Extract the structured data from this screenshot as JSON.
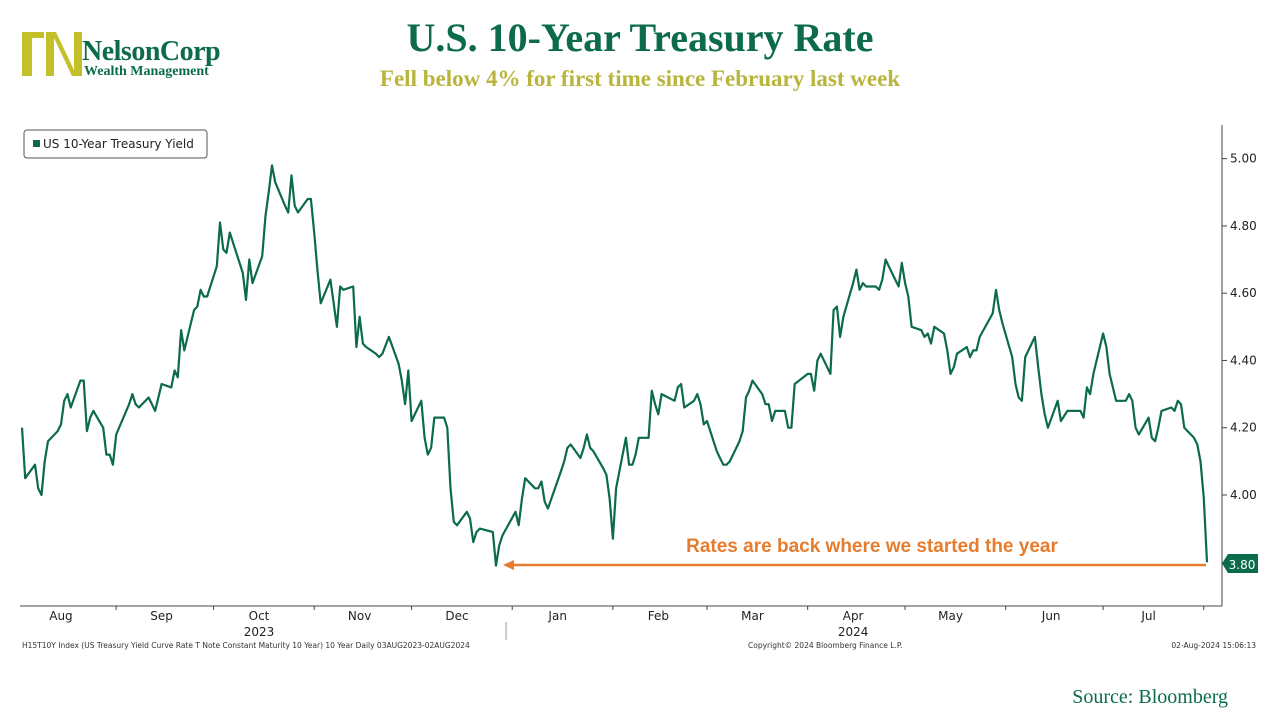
{
  "logo": {
    "name": "NelsonCorp",
    "sub": "Wealth Management",
    "colors": {
      "green": "#0b6b4a",
      "gold": "#c4c02a"
    }
  },
  "header": {
    "title": "U.S. 10-Year Treasury Rate",
    "subtitle": "Fell below 4% for first time since February last week"
  },
  "source": "Source:  Bloomberg",
  "footer": {
    "left": "H15T10Y Index (US Treasury Yield Curve Rate T Note Constant Maturity 10 Year) 10 Year  Daily 03AUG2023-02AUG2024",
    "center": "Copyright© 2024 Bloomberg Finance L.P.",
    "right": "02-Aug-2024 15:06:13"
  },
  "annotation": {
    "text": "Rates are back where we started the year",
    "color": "#e87c2e"
  },
  "last_value_label": "3.80",
  "chart_data": {
    "type": "line",
    "title": "U.S. 10-Year Treasury Rate",
    "ylim": [
      3.67,
      5.1
    ],
    "y_ticks": [
      "5.00",
      "4.80",
      "4.60",
      "4.40",
      "4.20",
      "4.00"
    ],
    "x_month_labels": [
      "Aug",
      "Sep",
      "Oct",
      "Nov",
      "Dec",
      "Jan",
      "Feb",
      "Mar",
      "Apr",
      "May",
      "Jun",
      "Jul"
    ],
    "x_year_labels": [
      "2023",
      "2024"
    ],
    "grid": false,
    "legend_position": "top-left",
    "series": [
      {
        "name": "US 10-Year Treasury Yield",
        "color": "#0b6b4a",
        "x": [
          "2023-08-03",
          "2023-08-04",
          "2023-08-07",
          "2023-08-08",
          "2023-08-09",
          "2023-08-10",
          "2023-08-11",
          "2023-08-14",
          "2023-08-15",
          "2023-08-16",
          "2023-08-17",
          "2023-08-18",
          "2023-08-21",
          "2023-08-22",
          "2023-08-23",
          "2023-08-24",
          "2023-08-25",
          "2023-08-28",
          "2023-08-29",
          "2023-08-30",
          "2023-08-31",
          "2023-09-01",
          "2023-09-05",
          "2023-09-06",
          "2023-09-07",
          "2023-09-08",
          "2023-09-11",
          "2023-09-12",
          "2023-09-13",
          "2023-09-14",
          "2023-09-15",
          "2023-09-18",
          "2023-09-19",
          "2023-09-20",
          "2023-09-21",
          "2023-09-22",
          "2023-09-25",
          "2023-09-26",
          "2023-09-27",
          "2023-09-28",
          "2023-09-29",
          "2023-10-02",
          "2023-10-03",
          "2023-10-04",
          "2023-10-05",
          "2023-10-06",
          "2023-10-10",
          "2023-10-11",
          "2023-10-12",
          "2023-10-13",
          "2023-10-16",
          "2023-10-17",
          "2023-10-18",
          "2023-10-19",
          "2023-10-20",
          "2023-10-23",
          "2023-10-24",
          "2023-10-25",
          "2023-10-26",
          "2023-10-27",
          "2023-10-30",
          "2023-10-31",
          "2023-11-01",
          "2023-11-02",
          "2023-11-03",
          "2023-11-06",
          "2023-11-07",
          "2023-11-08",
          "2023-11-09",
          "2023-11-10",
          "2023-11-13",
          "2023-11-14",
          "2023-11-15",
          "2023-11-16",
          "2023-11-17",
          "2023-11-20",
          "2023-11-21",
          "2023-11-22",
          "2023-11-24",
          "2023-11-27",
          "2023-11-28",
          "2023-11-29",
          "2023-11-30",
          "2023-12-01",
          "2023-12-04",
          "2023-12-05",
          "2023-12-06",
          "2023-12-07",
          "2023-12-08",
          "2023-12-11",
          "2023-12-12",
          "2023-12-13",
          "2023-12-14",
          "2023-12-15",
          "2023-12-18",
          "2023-12-19",
          "2023-12-20",
          "2023-12-21",
          "2023-12-22",
          "2023-12-26",
          "2023-12-27",
          "2023-12-28",
          "2023-12-29",
          "2024-01-02",
          "2024-01-03",
          "2024-01-04",
          "2024-01-05",
          "2024-01-08",
          "2024-01-09",
          "2024-01-10",
          "2024-01-11",
          "2024-01-12",
          "2024-01-16",
          "2024-01-17",
          "2024-01-18",
          "2024-01-19",
          "2024-01-22",
          "2024-01-23",
          "2024-01-24",
          "2024-01-25",
          "2024-01-26",
          "2024-01-29",
          "2024-01-30",
          "2024-01-31",
          "2024-02-01",
          "2024-02-02",
          "2024-02-05",
          "2024-02-06",
          "2024-02-07",
          "2024-02-08",
          "2024-02-09",
          "2024-02-12",
          "2024-02-13",
          "2024-02-14",
          "2024-02-15",
          "2024-02-16",
          "2024-02-20",
          "2024-02-21",
          "2024-02-22",
          "2024-02-23",
          "2024-02-26",
          "2024-02-27",
          "2024-02-28",
          "2024-02-29",
          "2024-03-01",
          "2024-03-04",
          "2024-03-05",
          "2024-03-06",
          "2024-03-07",
          "2024-03-08",
          "2024-03-11",
          "2024-03-12",
          "2024-03-13",
          "2024-03-14",
          "2024-03-15",
          "2024-03-18",
          "2024-03-19",
          "2024-03-20",
          "2024-03-21",
          "2024-03-22",
          "2024-03-25",
          "2024-03-26",
          "2024-03-27",
          "2024-03-28",
          "2024-04-01",
          "2024-04-02",
          "2024-04-03",
          "2024-04-04",
          "2024-04-05",
          "2024-04-08",
          "2024-04-09",
          "2024-04-10",
          "2024-04-11",
          "2024-04-12",
          "2024-04-15",
          "2024-04-16",
          "2024-04-17",
          "2024-04-18",
          "2024-04-19",
          "2024-04-22",
          "2024-04-23",
          "2024-04-24",
          "2024-04-25",
          "2024-04-26",
          "2024-04-29",
          "2024-04-30",
          "2024-05-01",
          "2024-05-02",
          "2024-05-03",
          "2024-05-06",
          "2024-05-07",
          "2024-05-08",
          "2024-05-09",
          "2024-05-10",
          "2024-05-13",
          "2024-05-14",
          "2024-05-15",
          "2024-05-16",
          "2024-05-17",
          "2024-05-20",
          "2024-05-21",
          "2024-05-22",
          "2024-05-23",
          "2024-05-24",
          "2024-05-28",
          "2024-05-29",
          "2024-05-30",
          "2024-05-31",
          "2024-06-03",
          "2024-06-04",
          "2024-06-05",
          "2024-06-06",
          "2024-06-07",
          "2024-06-10",
          "2024-06-11",
          "2024-06-12",
          "2024-06-13",
          "2024-06-14",
          "2024-06-17",
          "2024-06-18",
          "2024-06-20",
          "2024-06-21",
          "2024-06-24",
          "2024-06-25",
          "2024-06-26",
          "2024-06-27",
          "2024-06-28",
          "2024-07-01",
          "2024-07-02",
          "2024-07-03",
          "2024-07-05",
          "2024-07-08",
          "2024-07-09",
          "2024-07-10",
          "2024-07-11",
          "2024-07-12",
          "2024-07-15",
          "2024-07-16",
          "2024-07-17",
          "2024-07-18",
          "2024-07-19",
          "2024-07-22",
          "2024-07-23",
          "2024-07-24",
          "2024-07-25",
          "2024-07-26",
          "2024-07-29",
          "2024-07-30",
          "2024-07-31",
          "2024-08-01",
          "2024-08-02"
        ],
        "values": [
          4.2,
          4.05,
          4.09,
          4.02,
          4.0,
          4.1,
          4.16,
          4.19,
          4.21,
          4.28,
          4.3,
          4.26,
          4.34,
          4.34,
          4.19,
          4.23,
          4.25,
          4.2,
          4.12,
          4.12,
          4.09,
          4.18,
          4.27,
          4.3,
          4.27,
          4.26,
          4.29,
          4.27,
          4.25,
          4.29,
          4.33,
          4.32,
          4.37,
          4.35,
          4.49,
          4.43,
          4.55,
          4.56,
          4.61,
          4.59,
          4.59,
          4.68,
          4.81,
          4.73,
          4.72,
          4.78,
          4.66,
          4.58,
          4.7,
          4.63,
          4.71,
          4.83,
          4.9,
          4.98,
          4.93,
          4.86,
          4.84,
          4.95,
          4.86,
          4.84,
          4.88,
          4.88,
          4.78,
          4.67,
          4.57,
          4.64,
          4.57,
          4.5,
          4.62,
          4.61,
          4.62,
          4.44,
          4.53,
          4.45,
          4.44,
          4.42,
          4.41,
          4.42,
          4.47,
          4.39,
          4.34,
          4.27,
          4.37,
          4.22,
          4.28,
          4.17,
          4.12,
          4.14,
          4.23,
          4.23,
          4.2,
          4.02,
          3.92,
          3.91,
          3.95,
          3.93,
          3.86,
          3.89,
          3.9,
          3.89,
          3.79,
          3.85,
          3.88,
          3.95,
          3.91,
          3.99,
          4.05,
          4.02,
          4.02,
          4.04,
          3.98,
          3.96,
          4.07,
          4.1,
          4.14,
          4.15,
          4.11,
          4.14,
          4.18,
          4.14,
          4.13,
          4.08,
          4.06,
          3.99,
          3.87,
          4.02,
          4.17,
          4.09,
          4.09,
          4.12,
          4.17,
          4.17,
          4.31,
          4.27,
          4.24,
          4.3,
          4.28,
          4.32,
          4.33,
          4.26,
          4.28,
          4.3,
          4.27,
          4.21,
          4.22,
          4.13,
          4.11,
          4.09,
          4.09,
          4.1,
          4.16,
          4.19,
          4.29,
          4.31,
          4.34,
          4.3,
          4.27,
          4.27,
          4.22,
          4.25,
          4.25,
          4.2,
          4.2,
          4.33,
          4.36,
          4.36,
          4.31,
          4.4,
          4.42,
          4.36,
          4.55,
          4.56,
          4.47,
          4.53,
          4.63,
          4.67,
          4.61,
          4.63,
          4.62,
          4.62,
          4.61,
          4.64,
          4.7,
          4.68,
          4.62,
          4.69,
          4.63,
          4.59,
          4.5,
          4.49,
          4.47,
          4.48,
          4.45,
          4.5,
          4.48,
          4.43,
          4.36,
          4.38,
          4.42,
          4.44,
          4.41,
          4.43,
          4.43,
          4.47,
          4.54,
          4.61,
          4.55,
          4.51,
          4.41,
          4.33,
          4.29,
          4.28,
          4.41,
          4.47,
          4.38,
          4.3,
          4.24,
          4.2,
          4.28,
          4.22,
          4.25,
          4.25,
          4.25,
          4.23,
          4.32,
          4.3,
          4.36,
          4.48,
          4.44,
          4.36,
          4.28,
          4.28,
          4.3,
          4.28,
          4.2,
          4.18,
          4.23,
          4.17,
          4.16,
          4.2,
          4.25,
          4.26,
          4.25,
          4.28,
          4.27,
          4.2,
          4.17,
          4.15,
          4.1,
          3.99,
          3.8
        ]
      }
    ]
  }
}
